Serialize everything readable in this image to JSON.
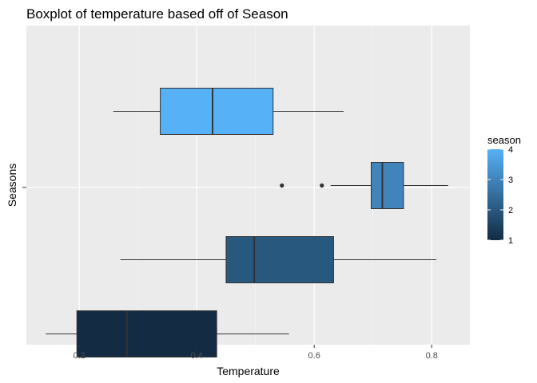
{
  "chart_data": {
    "type": "boxplot",
    "title": "Boxplot of temperature based off of Season",
    "xlabel": "Temperature",
    "ylabel": "Seasons",
    "xlim": [
      0.11,
      0.865
    ],
    "x_ticks": [
      0.2,
      0.4,
      0.6,
      0.8
    ],
    "x_tick_labels": [
      "0.2",
      "0.4",
      "0.6",
      "0.8"
    ],
    "grid": true,
    "orientation": "horizontal",
    "series": [
      {
        "season": 4,
        "whisker_low": 0.258,
        "q1": 0.338,
        "median": 0.427,
        "q3": 0.53,
        "whisker_high": 0.65,
        "outliers": []
      },
      {
        "season": 3,
        "whisker_low": 0.628,
        "q1": 0.697,
        "median": 0.716,
        "q3": 0.752,
        "whisker_high": 0.828,
        "outliers": [
          0.545,
          0.613
        ]
      },
      {
        "season": 2,
        "whisker_low": 0.27,
        "q1": 0.45,
        "median": 0.498,
        "q3": 0.633,
        "whisker_high": 0.808,
        "outliers": []
      },
      {
        "season": 1,
        "whisker_low": 0.143,
        "q1": 0.196,
        "median": 0.281,
        "q3": 0.434,
        "whisker_high": 0.557,
        "outliers": []
      }
    ],
    "legend": {
      "title": "season",
      "labels": [
        "4",
        "3",
        "2",
        "1"
      ],
      "values": [
        4,
        3,
        2,
        1
      ],
      "gradient_low": "#132B43",
      "gradient_high": "#56B1F7",
      "placement": "right"
    }
  }
}
